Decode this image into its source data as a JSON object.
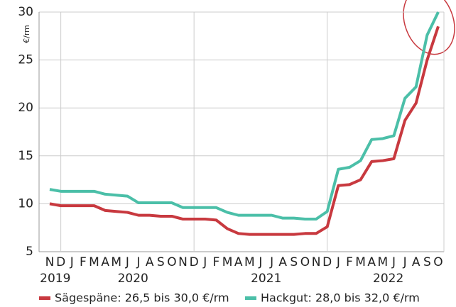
{
  "chart_data": {
    "type": "line",
    "y_label": "€/rm",
    "categories": [
      "N",
      "D",
      "J",
      "F",
      "M",
      "A",
      "M",
      "J",
      "J",
      "A",
      "S",
      "O",
      "N",
      "D",
      "J",
      "F",
      "M",
      "A",
      "M",
      "J",
      "J",
      "A",
      "S",
      "O",
      "N",
      "D",
      "J",
      "F",
      "M",
      "A",
      "M",
      "J",
      "J",
      "A",
      "S",
      "O"
    ],
    "x_groups": [
      "2019",
      "2020",
      "2021",
      "2022"
    ],
    "series": [
      {
        "name": "Sägespäne: 26,5 bis 30,0 €/rm",
        "color": "#c8393f",
        "values": [
          10.0,
          9.8,
          9.8,
          9.8,
          9.8,
          9.3,
          9.2,
          9.1,
          8.8,
          8.8,
          8.7,
          8.7,
          8.4,
          8.4,
          8.4,
          8.3,
          7.4,
          6.9,
          6.8,
          6.8,
          6.8,
          6.8,
          6.8,
          6.9,
          6.9,
          7.6,
          11.9,
          12.0,
          12.5,
          14.4,
          14.5,
          14.7,
          18.7,
          20.5,
          25.0,
          28.5
        ]
      },
      {
        "name": "Hackgut: 28,0 bis 32,0 €/rm",
        "color": "#4bbfa8",
        "values": [
          11.5,
          11.3,
          11.3,
          11.3,
          11.3,
          11.0,
          10.9,
          10.8,
          10.1,
          10.1,
          10.1,
          10.1,
          9.6,
          9.6,
          9.6,
          9.6,
          9.1,
          8.8,
          8.8,
          8.8,
          8.8,
          8.5,
          8.5,
          8.4,
          8.4,
          9.2,
          13.6,
          13.8,
          14.5,
          16.7,
          16.8,
          17.1,
          21.0,
          22.2,
          27.6,
          30.0
        ]
      }
    ],
    "ylim": [
      5,
      30
    ],
    "yticks": [
      5,
      10,
      15,
      20,
      25,
      30
    ],
    "grid": true
  }
}
